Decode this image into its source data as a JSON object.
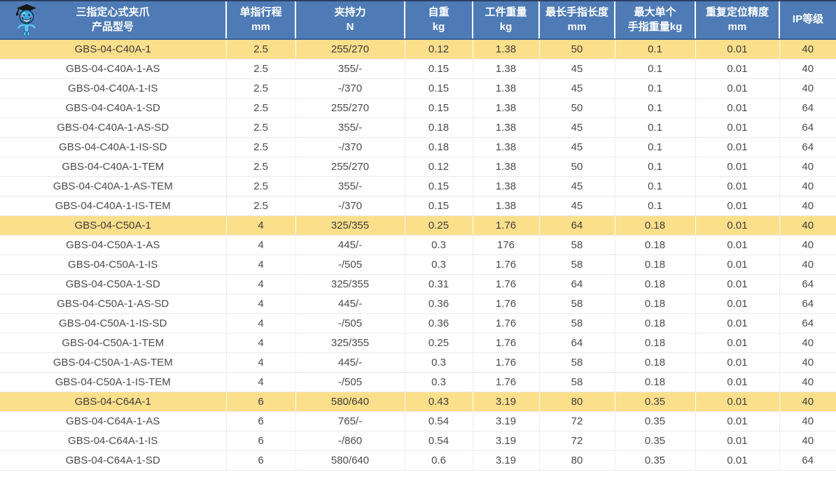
{
  "colors": {
    "header-bg": "#4e7bb5",
    "header-text": "#ffffff",
    "highlight-bg": "#fbdf8b",
    "top-border": "#2a3f63",
    "header-bottom-border": "#3b5e97",
    "row-border": "#e9e9e9",
    "col-border": "#ededed",
    "body-text": "#4a4a4a"
  },
  "table": {
    "columns": [
      {
        "line1": "三指定心式夹爪",
        "line2": "产品型号"
      },
      {
        "line1": "单指行程",
        "line2": "mm"
      },
      {
        "line1": "夹持力",
        "line2": "N"
      },
      {
        "line1": "自重",
        "line2": "kg"
      },
      {
        "line1": "工件重量",
        "line2": "kg"
      },
      {
        "line1": "最长手指长度",
        "line2": "mm"
      },
      {
        "line1": "最大单个",
        "line2": "手指重量kg"
      },
      {
        "line1": "重复定位精度",
        "line2": "mm"
      },
      {
        "line1": "IP等级",
        "line2": ""
      }
    ],
    "rows": [
      {
        "highlight": true,
        "cells": [
          "GBS-04-C40A-1",
          "2.5",
          "255/270",
          "0.12",
          "1.38",
          "50",
          "0.1",
          "0.01",
          "40"
        ]
      },
      {
        "highlight": false,
        "cells": [
          "GBS-04-C40A-1-AS",
          "2.5",
          "355/-",
          "0.15",
          "1.38",
          "45",
          "0.1",
          "0.01",
          "40"
        ]
      },
      {
        "highlight": false,
        "cells": [
          "GBS-04-C40A-1-IS",
          "2.5",
          "-/370",
          "0.15",
          "1.38",
          "45",
          "0.1",
          "0.01",
          "40"
        ]
      },
      {
        "highlight": false,
        "cells": [
          "GBS-04-C40A-1-SD",
          "2.5",
          "255/270",
          "0.15",
          "1.38",
          "50",
          "0.1",
          "0.01",
          "64"
        ]
      },
      {
        "highlight": false,
        "cells": [
          "GBS-04-C40A-1-AS-SD",
          "2.5",
          "355/-",
          "0.18",
          "1.38",
          "45",
          "0.1",
          "0.01",
          "64"
        ]
      },
      {
        "highlight": false,
        "cells": [
          "GBS-04-C40A-1-IS-SD",
          "2.5",
          "-/370",
          "0.18",
          "1.38",
          "45",
          "0.1",
          "0.01",
          "64"
        ]
      },
      {
        "highlight": false,
        "cells": [
          "GBS-04-C40A-1-TEM",
          "2.5",
          "255/270",
          "0.12",
          "1.38",
          "50",
          "0.1",
          "0.01",
          "40"
        ]
      },
      {
        "highlight": false,
        "cells": [
          "GBS-04-C40A-1-AS-TEM",
          "2.5",
          "355/-",
          "0.15",
          "1.38",
          "45",
          "0.1",
          "0.01",
          "40"
        ]
      },
      {
        "highlight": false,
        "cells": [
          "GBS-04-C40A-1-IS-TEM",
          "2.5",
          "-/370",
          "0.15",
          "1.38",
          "45",
          "0.1",
          "0.01",
          "40"
        ]
      },
      {
        "highlight": true,
        "cells": [
          "GBS-04-C50A-1",
          "4",
          "325/355",
          "0.25",
          "1.76",
          "64",
          "0.18",
          "0.01",
          "40"
        ]
      },
      {
        "highlight": false,
        "cells": [
          "GBS-04-C50A-1-AS",
          "4",
          "445/-",
          "0.3",
          "176",
          "58",
          "0.18",
          "0.01",
          "40"
        ]
      },
      {
        "highlight": false,
        "cells": [
          "GBS-04-C50A-1-IS",
          "4",
          "-/505",
          "0.3",
          "1.76",
          "58",
          "0.18",
          "0.01",
          "40"
        ]
      },
      {
        "highlight": false,
        "cells": [
          "GBS-04-C50A-1-SD",
          "4",
          "325/355",
          "0.31",
          "1.76",
          "64",
          "0.18",
          "0.01",
          "64"
        ]
      },
      {
        "highlight": false,
        "cells": [
          "GBS-04-C50A-1-AS-SD",
          "4",
          "445/-",
          "0.36",
          "1.76",
          "58",
          "0.18",
          "0.01",
          "64"
        ]
      },
      {
        "highlight": false,
        "cells": [
          "GBS-04-C50A-1-IS-SD",
          "4",
          "-/505",
          "0.36",
          "1.76",
          "58",
          "0.18",
          "0.01",
          "64"
        ]
      },
      {
        "highlight": false,
        "cells": [
          "GBS-04-C50A-1-TEM",
          "4",
          "325/355",
          "0.25",
          "1.76",
          "64",
          "0.18",
          "0.01",
          "40"
        ]
      },
      {
        "highlight": false,
        "cells": [
          "GBS-04-C50A-1-AS-TEM",
          "4",
          "445/-",
          "0.3",
          "1.76",
          "58",
          "0.18",
          "0.01",
          "40"
        ]
      },
      {
        "highlight": false,
        "cells": [
          "GBS-04-C50A-1-IS-TEM",
          "4",
          "-/505",
          "0.3",
          "1.76",
          "58",
          "0.18",
          "0.01",
          "40"
        ]
      },
      {
        "highlight": true,
        "cells": [
          "GBS-04-C64A-1",
          "6",
          "580/640",
          "0.43",
          "3.19",
          "80",
          "0.35",
          "0.01",
          "40"
        ]
      },
      {
        "highlight": false,
        "cells": [
          "GBS-04-C64A-1-AS",
          "6",
          "765/-",
          "0.54",
          "3.19",
          "72",
          "0.35",
          "0.01",
          "40"
        ]
      },
      {
        "highlight": false,
        "cells": [
          "GBS-04-C64A-1-IS",
          "6",
          "-/860",
          "0.54",
          "3.19",
          "72",
          "0.35",
          "0.01",
          "40"
        ]
      },
      {
        "highlight": false,
        "cells": [
          "GBS-04-C64A-1-SD",
          "6",
          "580/640",
          "0.6",
          "3.19",
          "80",
          "0.35",
          "0.01",
          "64"
        ]
      }
    ]
  }
}
